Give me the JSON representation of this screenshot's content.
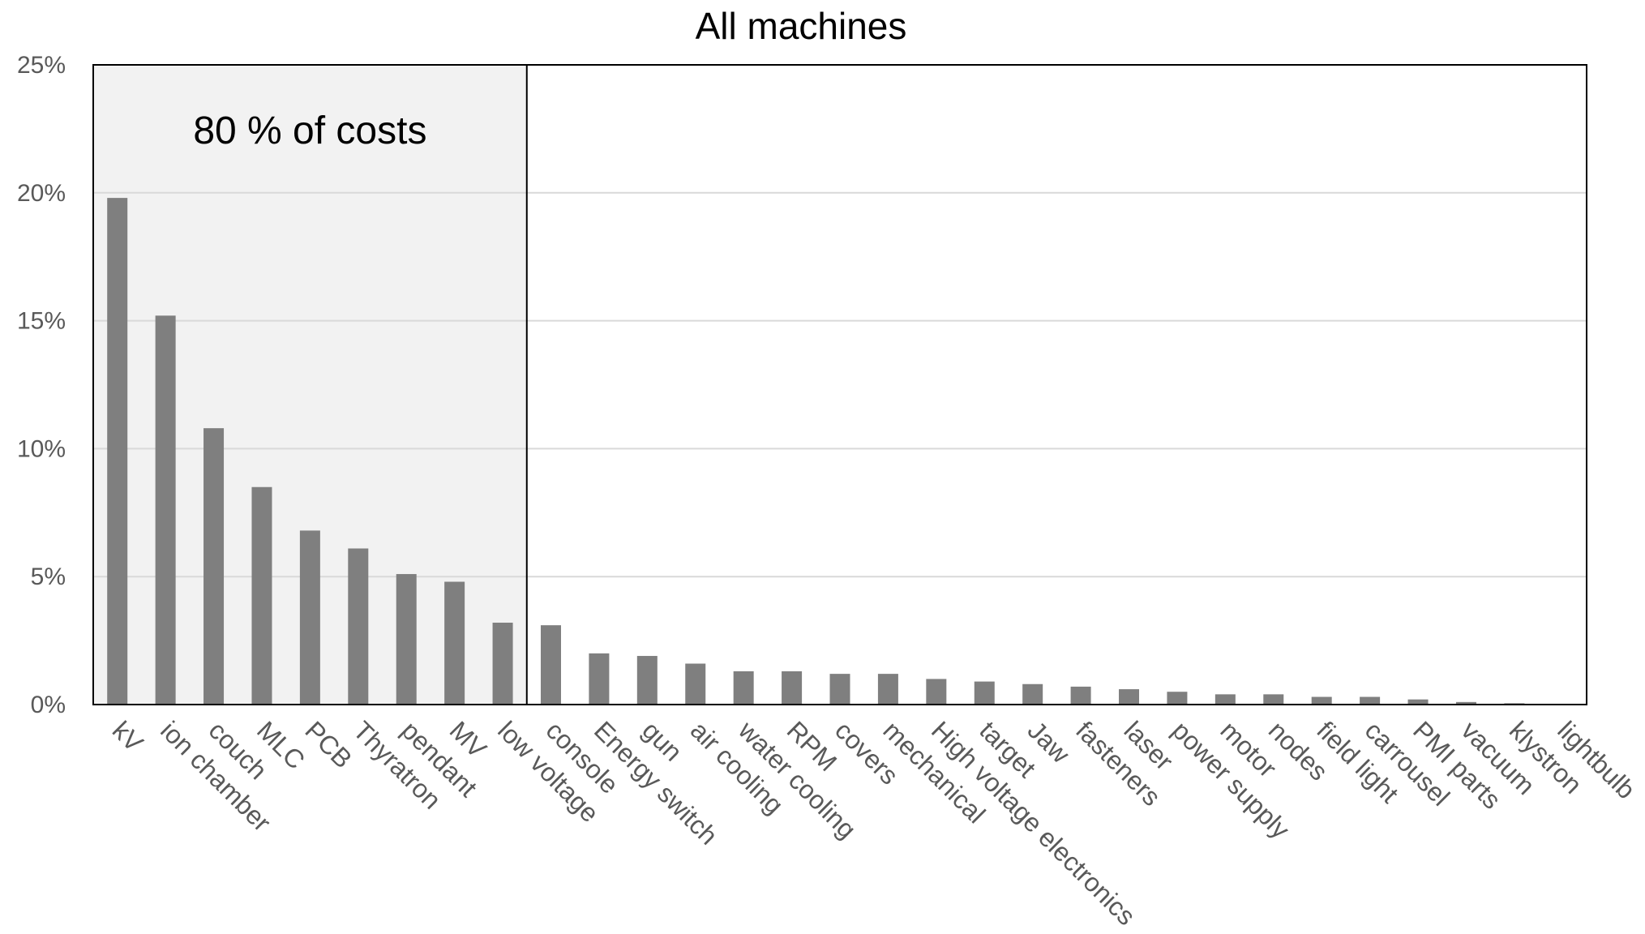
{
  "chart_data": {
    "type": "bar",
    "title": "All machines",
    "xlabel": "",
    "ylabel": "",
    "ylim": [
      0,
      25
    ],
    "yticks": [
      0,
      5,
      10,
      15,
      20,
      25
    ],
    "ytick_labels": [
      "0%",
      "5%",
      "10%",
      "15%",
      "20%",
      "25%"
    ],
    "grid": true,
    "legend": "none",
    "categories": [
      "kV",
      "ion chamber",
      "couch",
      "MLC",
      "PCB",
      "Thyratron",
      "pendant",
      "MV",
      "low voltage",
      "console",
      "Energy switch",
      "gun",
      "air cooling",
      "water cooling",
      "RPM",
      "covers",
      "mechanical",
      "High voltage electronics",
      "target",
      "Jaw",
      "fasteners",
      "laser",
      "power supply",
      "motor",
      "nodes",
      "field light",
      "carrousel",
      "PMI parts",
      "vacuum",
      "klystron",
      "lightbulb"
    ],
    "values": [
      19.8,
      15.2,
      10.8,
      8.5,
      6.8,
      6.1,
      5.1,
      4.8,
      3.2,
      3.1,
      2.0,
      1.9,
      1.6,
      1.3,
      1.3,
      1.2,
      1.2,
      1.0,
      0.9,
      0.8,
      0.7,
      0.6,
      0.5,
      0.4,
      0.4,
      0.3,
      0.3,
      0.2,
      0.1,
      0.05,
      0.0
    ],
    "bar_color": "#7f7f7f",
    "annotation": {
      "text": "80 % of costs",
      "region_end_category": "low voltage",
      "region_color": "#f2f2f2"
    }
  }
}
